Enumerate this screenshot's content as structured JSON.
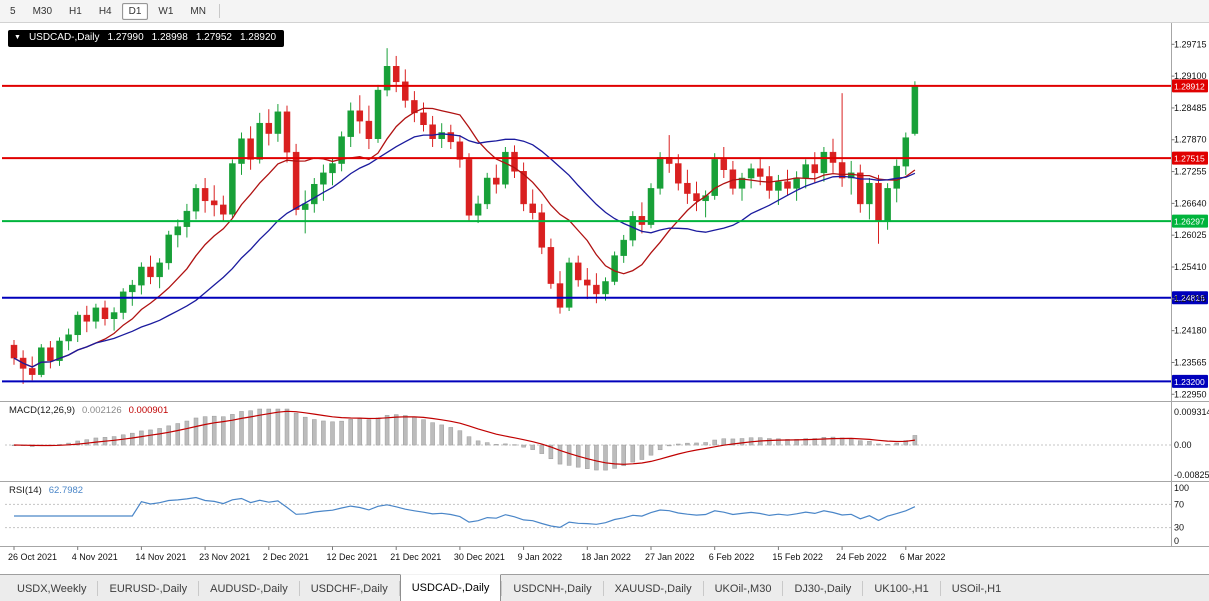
{
  "toolbar": {
    "timeframes": [
      "5",
      "M30",
      "H1",
      "H4",
      "D1",
      "W1",
      "MN"
    ],
    "active": "D1"
  },
  "chart_title": {
    "symbol": "USDCAD-,Daily",
    "open": "1.27990",
    "high": "1.28998",
    "low": "1.27952",
    "close": "1.28920"
  },
  "macd_panel": {
    "name": "MACD(12,26,9)",
    "main_value": "0.002126",
    "signal_value": "0.000901",
    "axis_labels": [
      "0.009314",
      "0.00",
      "-0.008256"
    ]
  },
  "rsi_panel": {
    "name": "RSI(14)",
    "value": "62.7982",
    "axis_labels": [
      "100",
      "70",
      "30",
      "0"
    ]
  },
  "price_axis": {
    "tick_labels": [
      "1.29715",
      "1.29100",
      "1.28485",
      "1.27870",
      "1.27255",
      "1.26640",
      "1.26025",
      "1.25410",
      "1.24795",
      "1.24180",
      "1.23565",
      "1.22950"
    ]
  },
  "time_axis": {
    "candles_per_tick": 7,
    "tick_labels": [
      "26 Oct 2021",
      "4 Nov 2021",
      "14 Nov 2021",
      "23 Nov 2021",
      "2 Dec 2021",
      "12 Dec 2021",
      "21 Dec 2021",
      "30 Dec 2021",
      "9 Jan 2022",
      "18 Jan 2022",
      "27 Jan 2022",
      "6 Feb 2022",
      "15 Feb 2022",
      "24 Feb 2022",
      "6 Mar 2022"
    ]
  },
  "tabs": {
    "active": "USDCAD-,Daily",
    "items": [
      "USDX,Weekly",
      "EURUSD-,Daily",
      "AUDUSD-,Daily",
      "USDCHF-,Daily",
      "USDCAD-,Daily",
      "USDCNH-,Daily",
      "XAUUSD-,Daily",
      "UKOil-,M30",
      "DJ30-,Daily",
      "UK100-,H1",
      "USOil-,H1"
    ]
  },
  "chart_data": {
    "type": "candlestick",
    "symbol": "USDCAD",
    "timeframe": "Daily",
    "title": "USDCAD-,Daily 1.27990 1.28998 1.27952 1.28920",
    "y_range": [
      1.2282,
      1.3003
    ],
    "colors": {
      "up": "#18a038",
      "down": "#d92020",
      "ma_fast": "#b01212",
      "ma_slow": "#1b1b9e",
      "macd_hist": "#bcbcbc",
      "macd_hist_border": "#9a9a9a",
      "macd_signal": "#c00000",
      "rsi": "#4a86c8",
      "badge_red": "#e00000",
      "badge_green": "#00b43c",
      "badge_blue": "#0000bb"
    },
    "moving_averages": [
      {
        "period": 10,
        "color_key": "ma_fast"
      },
      {
        "period": 21,
        "color_key": "ma_slow"
      }
    ],
    "horizontal_lines": [
      {
        "price": 1.28912,
        "label": "1.28912",
        "color": "#e00000"
      },
      {
        "price": 1.27515,
        "label": "1.27515",
        "color": "#e00000"
      },
      {
        "price": 1.26297,
        "label": "1.26297",
        "color": "#00b43c"
      },
      {
        "price": 1.24816,
        "label": "1.24816",
        "color": "#0000bb"
      },
      {
        "price": 1.232,
        "label": "1.23200",
        "color": "#0000bb"
      }
    ],
    "macd": {
      "fast": 12,
      "slow": 26,
      "signal": 9,
      "range": [
        -0.008256,
        0.009314
      ]
    },
    "rsi": {
      "period": 14,
      "levels": [
        70,
        30
      ]
    },
    "candles": [
      [
        1.239,
        1.24,
        1.2352,
        1.2365
      ],
      [
        1.2365,
        1.238,
        1.2315,
        1.2345
      ],
      [
        1.2345,
        1.2368,
        1.2322,
        1.2333
      ],
      [
        1.2333,
        1.2392,
        1.2328,
        1.2385
      ],
      [
        1.2385,
        1.2398,
        1.2345,
        1.236
      ],
      [
        1.236,
        1.2405,
        1.235,
        1.2398
      ],
      [
        1.2398,
        1.2422,
        1.238,
        1.241
      ],
      [
        1.241,
        1.2455,
        1.2396,
        1.2448
      ],
      [
        1.2448,
        1.2466,
        1.2415,
        1.2436
      ],
      [
        1.2436,
        1.247,
        1.2422,
        1.2462
      ],
      [
        1.2462,
        1.2476,
        1.2428,
        1.2441
      ],
      [
        1.2441,
        1.2463,
        1.2418,
        1.2453
      ],
      [
        1.2453,
        1.25,
        1.244,
        1.2493
      ],
      [
        1.2493,
        1.2516,
        1.2466,
        1.2506
      ],
      [
        1.2506,
        1.255,
        1.2488,
        1.2541
      ],
      [
        1.2541,
        1.2563,
        1.2508,
        1.2522
      ],
      [
        1.2522,
        1.2558,
        1.25,
        1.2549
      ],
      [
        1.2549,
        1.2611,
        1.2536,
        1.2603
      ],
      [
        1.2603,
        1.2633,
        1.2579,
        1.2619
      ],
      [
        1.2619,
        1.2663,
        1.2598,
        1.2649
      ],
      [
        1.2649,
        1.2701,
        1.2633,
        1.2693
      ],
      [
        1.2693,
        1.2713,
        1.2646,
        1.2669
      ],
      [
        1.2669,
        1.2699,
        1.2639,
        1.2661
      ],
      [
        1.2661,
        1.2679,
        1.2629,
        1.2643
      ],
      [
        1.2643,
        1.2749,
        1.2636,
        1.2741
      ],
      [
        1.2741,
        1.2801,
        1.2719,
        1.2789
      ],
      [
        1.2789,
        1.2813,
        1.2729,
        1.2749
      ],
      [
        1.2749,
        1.2839,
        1.2741,
        1.2819
      ],
      [
        1.2819,
        1.2846,
        1.2776,
        1.2799
      ],
      [
        1.2799,
        1.2856,
        1.2783,
        1.2841
      ],
      [
        1.2841,
        1.2853,
        1.2743,
        1.2763
      ],
      [
        1.2763,
        1.2779,
        1.2641,
        1.2652
      ],
      [
        1.2652,
        1.2689,
        1.2606,
        1.2663
      ],
      [
        1.2663,
        1.2713,
        1.2646,
        1.2701
      ],
      [
        1.2701,
        1.2739,
        1.2669,
        1.2723
      ],
      [
        1.2723,
        1.2753,
        1.2699,
        1.2741
      ],
      [
        1.2741,
        1.2803,
        1.2726,
        1.2793
      ],
      [
        1.2793,
        1.2859,
        1.2773,
        1.2843
      ],
      [
        1.2843,
        1.2873,
        1.2799,
        1.2823
      ],
      [
        1.2823,
        1.2853,
        1.2769,
        1.2789
      ],
      [
        1.2789,
        1.2893,
        1.2781,
        1.2883
      ],
      [
        1.2883,
        1.2964,
        1.2871,
        1.2929
      ],
      [
        1.2929,
        1.2949,
        1.2879,
        1.2899
      ],
      [
        1.2899,
        1.2923,
        1.2849,
        1.2863
      ],
      [
        1.2863,
        1.2881,
        1.2821,
        1.2839
      ],
      [
        1.2839,
        1.2859,
        1.2803,
        1.2816
      ],
      [
        1.2816,
        1.2833,
        1.2773,
        1.2789
      ],
      [
        1.2789,
        1.2819,
        1.2771,
        1.2801
      ],
      [
        1.2801,
        1.2816,
        1.2769,
        1.2783
      ],
      [
        1.2783,
        1.2796,
        1.2733,
        1.2749
      ],
      [
        1.2749,
        1.2761,
        1.2629,
        1.2641
      ],
      [
        1.2641,
        1.2679,
        1.2626,
        1.2663
      ],
      [
        1.2663,
        1.2723,
        1.2653,
        1.2713
      ],
      [
        1.2713,
        1.2739,
        1.2683,
        1.2701
      ],
      [
        1.2701,
        1.2773,
        1.2693,
        1.2763
      ],
      [
        1.2763,
        1.2776,
        1.2713,
        1.2726
      ],
      [
        1.2726,
        1.2743,
        1.2649,
        1.2663
      ],
      [
        1.2663,
        1.2691,
        1.2633,
        1.2646
      ],
      [
        1.2646,
        1.2663,
        1.2566,
        1.2579
      ],
      [
        1.2579,
        1.2596,
        1.2499,
        1.2509
      ],
      [
        1.2509,
        1.2533,
        1.2451,
        1.2463
      ],
      [
        1.2463,
        1.2559,
        1.2456,
        1.2549
      ],
      [
        1.2549,
        1.2563,
        1.2503,
        1.2516
      ],
      [
        1.2516,
        1.2539,
        1.2479,
        1.2506
      ],
      [
        1.2506,
        1.2529,
        1.2471,
        1.2489
      ],
      [
        1.2489,
        1.2521,
        1.2476,
        1.2513
      ],
      [
        1.2513,
        1.2571,
        1.2506,
        1.2563
      ],
      [
        1.2563,
        1.2603,
        1.2549,
        1.2593
      ],
      [
        1.2593,
        1.2649,
        1.2581,
        1.2639
      ],
      [
        1.2639,
        1.2666,
        1.2606,
        1.2623
      ],
      [
        1.2623,
        1.2703,
        1.2616,
        1.2693
      ],
      [
        1.2693,
        1.2763,
        1.2681,
        1.2753
      ],
      [
        1.2753,
        1.2796,
        1.2723,
        1.2741
      ],
      [
        1.2741,
        1.2759,
        1.2689,
        1.2703
      ],
      [
        1.2703,
        1.2729,
        1.2663,
        1.2683
      ],
      [
        1.2683,
        1.2706,
        1.2649,
        1.2669
      ],
      [
        1.2669,
        1.2689,
        1.2637,
        1.2679
      ],
      [
        1.2679,
        1.2761,
        1.2671,
        1.2749
      ],
      [
        1.2749,
        1.2773,
        1.2713,
        1.2729
      ],
      [
        1.2729,
        1.2746,
        1.2681,
        1.2693
      ],
      [
        1.2693,
        1.2723,
        1.2669,
        1.2713
      ],
      [
        1.2713,
        1.2741,
        1.2693,
        1.2731
      ],
      [
        1.2731,
        1.2753,
        1.2699,
        1.2716
      ],
      [
        1.2716,
        1.2736,
        1.2673,
        1.2689
      ],
      [
        1.2689,
        1.2719,
        1.2661,
        1.2706
      ],
      [
        1.2706,
        1.2729,
        1.2679,
        1.2693
      ],
      [
        1.2693,
        1.2726,
        1.2669,
        1.2713
      ],
      [
        1.2713,
        1.2749,
        1.2693,
        1.2739
      ],
      [
        1.2739,
        1.2763,
        1.2703,
        1.2723
      ],
      [
        1.2723,
        1.2773,
        1.2706,
        1.2763
      ],
      [
        1.2763,
        1.2789,
        1.2723,
        1.2743
      ],
      [
        1.2743,
        1.2877,
        1.2696,
        1.2713
      ],
      [
        1.2713,
        1.2746,
        1.2681,
        1.2723
      ],
      [
        1.2723,
        1.2739,
        1.2646,
        1.2663
      ],
      [
        1.2663,
        1.2713,
        1.2633,
        1.2703
      ],
      [
        1.2703,
        1.2719,
        1.2586,
        1.2629
      ],
      [
        1.2629,
        1.2703,
        1.2613,
        1.2693
      ],
      [
        1.2693,
        1.2749,
        1.2666,
        1.2736
      ],
      [
        1.2736,
        1.2801,
        1.2719,
        1.2791
      ],
      [
        1.2799,
        1.29,
        1.2795,
        1.2892
      ]
    ]
  }
}
